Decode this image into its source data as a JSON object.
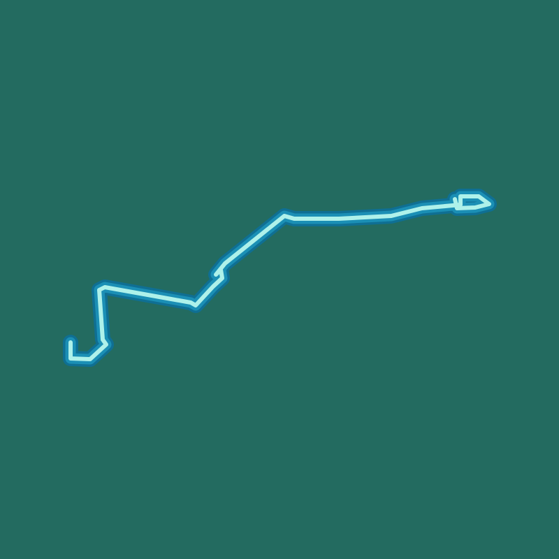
{
  "map": {
    "background_color": "#236b60",
    "route": {
      "outer_color": "#0f6f93",
      "middle_color": "#1b8fb5",
      "inner_color": "#aef1ea"
    }
  }
}
